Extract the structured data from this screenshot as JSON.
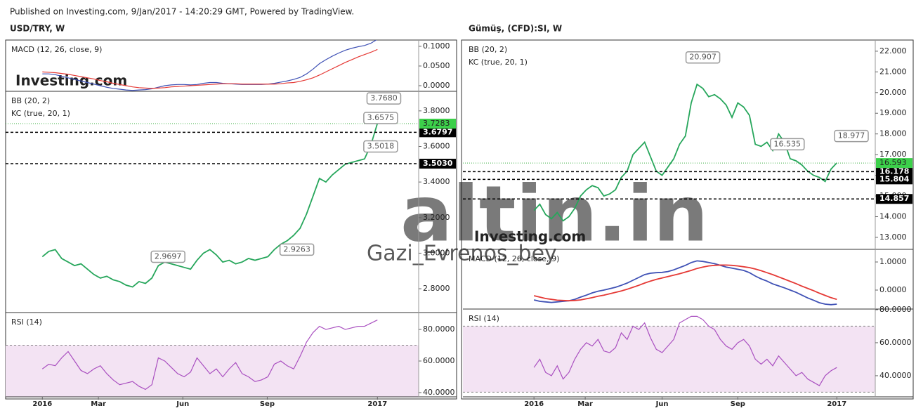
{
  "header": "Published on Investing.com, 9/Jan/2017 - 14:20:29 GMT, Powered by TradingView.",
  "left_title": "USD/TRY, W",
  "right_title": "Gümüş, (CFD):SI, W",
  "logos": [
    "Investing.com",
    "Investing.com"
  ],
  "watermark": [
    "altin.in",
    "Gazi_Evrenos_bey"
  ],
  "chart_data": [
    {
      "type": "line",
      "title": "MACD (12, 26, close, 9)",
      "xlim": [
        -5.7,
        58.4
      ],
      "ylim": [
        -0.0143,
        0.116
      ],
      "yticks": [
        {
          "value": 0,
          "label": "0.0000"
        },
        {
          "value": 0.05,
          "label": "0.0500"
        },
        {
          "value": 0.1,
          "label": "0.1000"
        }
      ],
      "series": [
        {
          "color": "#3f51b5",
          "values": [
            0.03,
            0.03,
            0.028,
            0.024,
            0.02,
            0.016,
            0.012,
            0.008,
            0.004,
            0.0,
            -0.004,
            -0.007,
            -0.009,
            -0.011,
            -0.012,
            -0.011,
            -0.01,
            -0.008,
            -0.004,
            0.0,
            0.002,
            0.003,
            0.003,
            0.002,
            0.003,
            0.006,
            0.008,
            0.008,
            0.006,
            0.005,
            0.004,
            0.003,
            0.003,
            0.003,
            0.003,
            0.004,
            0.006,
            0.009,
            0.012,
            0.016,
            0.021,
            0.03,
            0.042,
            0.056,
            0.066,
            0.075,
            0.083,
            0.09,
            0.095,
            0.099,
            0.102,
            0.108,
            0.118
          ]
        },
        {
          "color": "#e53935",
          "values": [
            0.035,
            0.034,
            0.033,
            0.031,
            0.029,
            0.026,
            0.023,
            0.02,
            0.017,
            0.013,
            0.01,
            0.006,
            0.003,
            0.0,
            -0.003,
            -0.005,
            -0.006,
            -0.007,
            -0.006,
            -0.005,
            -0.003,
            -0.002,
            -0.001,
            0.0,
            0.001,
            0.002,
            0.003,
            0.004,
            0.005,
            0.005,
            0.005,
            0.004,
            0.004,
            0.004,
            0.004,
            0.004,
            0.004,
            0.005,
            0.007,
            0.008,
            0.011,
            0.015,
            0.02,
            0.027,
            0.035,
            0.043,
            0.051,
            0.059,
            0.066,
            0.073,
            0.079,
            0.085,
            0.092
          ]
        }
      ]
    },
    {
      "type": "line",
      "title": "BB (20, 2)",
      "subtitle": "KC (true, 20, 1)",
      "xlim": [
        -5.7,
        58.4
      ],
      "ylim": [
        2.666,
        3.91
      ],
      "yticks": [
        {
          "value": 2.8,
          "label": "2.8000"
        },
        {
          "value": 3.0,
          "label": "3.0000"
        },
        {
          "value": 3.2,
          "label": "3.2000"
        },
        {
          "value": 3.4,
          "label": "3.4000"
        },
        {
          "value": 3.6,
          "label": "3.6000"
        },
        {
          "value": 3.8,
          "label": "3.8000"
        }
      ],
      "levels": [
        {
          "value": 3.6797,
          "label": "3.6797"
        },
        {
          "value": 3.503,
          "label": "3.5030"
        }
      ],
      "last_price": {
        "value": 3.7283,
        "label": "3.7283"
      },
      "annotations": [
        {
          "text": "3.7680",
          "x": 53,
          "y": 3.87
        },
        {
          "text": "3.6575",
          "x": 52.5,
          "y": 3.76
        },
        {
          "text": "3.5018",
          "x": 52.5,
          "y": 3.6
        },
        {
          "text": "2.9263",
          "x": 39.5,
          "y": 3.02
        },
        {
          "text": "2.9697",
          "x": 19.5,
          "y": 2.98
        }
      ],
      "series": [
        {
          "color": "#26a65b",
          "values": [
            2.98,
            3.01,
            3.02,
            2.97,
            2.95,
            2.93,
            2.94,
            2.91,
            2.88,
            2.86,
            2.87,
            2.85,
            2.84,
            2.82,
            2.81,
            2.84,
            2.83,
            2.86,
            2.93,
            2.95,
            2.94,
            2.93,
            2.92,
            2.91,
            2.96,
            3.0,
            3.02,
            2.99,
            2.95,
            2.96,
            2.94,
            2.95,
            2.97,
            2.96,
            2.97,
            2.98,
            3.02,
            3.05,
            3.07,
            3.1,
            3.14,
            3.22,
            3.32,
            3.42,
            3.4,
            3.44,
            3.47,
            3.5,
            3.51,
            3.52,
            3.53,
            3.61,
            3.73
          ]
        }
      ]
    },
    {
      "type": "line",
      "title": "RSI (14)",
      "xlim": [
        -5.7,
        58.4
      ],
      "ylim": [
        37.3,
        90.7
      ],
      "yticks": [
        {
          "value": 40,
          "label": "40.0000"
        },
        {
          "value": 60,
          "label": "60.0000"
        },
        {
          "value": 80,
          "label": "80.0000"
        }
      ],
      "bands": [
        30,
        70
      ],
      "xticks": [
        {
          "value": 0,
          "label": "2016"
        },
        {
          "value": 8.7,
          "label": "Mar"
        },
        {
          "value": 21.8,
          "label": "Jun"
        },
        {
          "value": 34.9,
          "label": "Sep"
        },
        {
          "value": 52,
          "label": "2017"
        }
      ],
      "series": [
        {
          "color": "#a94fc0",
          "values": [
            55,
            58,
            57,
            62,
            66,
            60,
            54,
            52,
            55,
            57,
            52,
            48,
            45,
            46,
            47,
            44,
            42,
            45,
            62,
            60,
            56,
            52,
            50,
            53,
            62,
            57,
            52,
            55,
            50,
            55,
            59,
            52,
            50,
            47,
            48,
            50,
            58,
            60,
            57,
            55,
            63,
            72,
            78,
            82,
            80,
            81,
            82,
            80,
            81,
            82,
            82,
            84,
            86
          ]
        }
      ]
    },
    {
      "type": "line",
      "title": "BB (20, 2)",
      "subtitle": "KC (true, 20, 1)",
      "xlim": [
        -12.2,
        58.6
      ],
      "ylim": [
        12.42,
        22.54
      ],
      "yticks": [
        {
          "value": 13,
          "label": "13.000"
        },
        {
          "value": 14,
          "label": "14.000"
        },
        {
          "value": 15,
          "label": "15.000"
        },
        {
          "value": 16,
          "label": "16.000"
        },
        {
          "value": 17,
          "label": "17.000"
        },
        {
          "value": 18,
          "label": "18.000"
        },
        {
          "value": 19,
          "label": "19.000"
        },
        {
          "value": 20,
          "label": "20.000"
        },
        {
          "value": 21,
          "label": "21.000"
        },
        {
          "value": 22,
          "label": "22.000"
        }
      ],
      "levels": [
        {
          "value": 16.178,
          "label": "16.178"
        },
        {
          "value": 15.804,
          "label": "15.804"
        },
        {
          "value": 14.857,
          "label": "14.857"
        }
      ],
      "last_price": {
        "value": 16.593,
        "label": "16.593"
      },
      "annotations": [
        {
          "text": "20.907",
          "x": 29,
          "y": 21.7
        },
        {
          "text": "16.535",
          "x": 43.5,
          "y": 17.5
        },
        {
          "text": "18.977",
          "x": 54.5,
          "y": 17.9
        }
      ],
      "series": [
        {
          "color": "#26a65b",
          "values": [
            14.3,
            14.6,
            14.1,
            13.9,
            14.2,
            13.8,
            14.0,
            14.4,
            15.0,
            15.3,
            15.5,
            15.4,
            15.0,
            15.1,
            15.3,
            15.9,
            16.2,
            17.0,
            17.3,
            17.6,
            16.9,
            16.2,
            16.0,
            16.4,
            16.8,
            17.5,
            17.9,
            19.5,
            20.4,
            20.2,
            19.8,
            19.9,
            19.7,
            19.4,
            18.8,
            19.5,
            19.3,
            18.9,
            17.5,
            17.4,
            17.6,
            17.2,
            18.0,
            17.6,
            16.8,
            16.7,
            16.5,
            16.2,
            16.0,
            15.9,
            15.7,
            16.3,
            16.6
          ]
        }
      ]
    },
    {
      "type": "line",
      "title": "MACD (12, 26, close, 9)",
      "xlim": [
        -12.2,
        58.6
      ],
      "ylim": [
        -0.675,
        1.45
      ],
      "yticks": [
        {
          "value": 0,
          "label": "0.0000"
        },
        {
          "value": 1,
          "label": "1.0000"
        }
      ],
      "series": [
        {
          "color": "#3f51b5",
          "values": [
            -0.35,
            -0.4,
            -0.42,
            -0.44,
            -0.42,
            -0.4,
            -0.38,
            -0.33,
            -0.25,
            -0.18,
            -0.1,
            -0.04,
            0.0,
            0.05,
            0.1,
            0.17,
            0.25,
            0.35,
            0.45,
            0.55,
            0.6,
            0.62,
            0.63,
            0.66,
            0.72,
            0.8,
            0.88,
            0.98,
            1.04,
            1.02,
            0.98,
            0.94,
            0.88,
            0.82,
            0.78,
            0.74,
            0.7,
            0.62,
            0.5,
            0.4,
            0.32,
            0.22,
            0.15,
            0.08,
            0.0,
            -0.08,
            -0.18,
            -0.28,
            -0.36,
            -0.45,
            -0.5,
            -0.52,
            -0.5
          ]
        },
        {
          "color": "#e53935",
          "values": [
            -0.2,
            -0.25,
            -0.3,
            -0.33,
            -0.36,
            -0.37,
            -0.38,
            -0.37,
            -0.35,
            -0.31,
            -0.27,
            -0.22,
            -0.18,
            -0.13,
            -0.08,
            -0.03,
            0.03,
            0.1,
            0.17,
            0.25,
            0.32,
            0.38,
            0.43,
            0.48,
            0.53,
            0.58,
            0.64,
            0.7,
            0.77,
            0.82,
            0.86,
            0.88,
            0.89,
            0.89,
            0.88,
            0.86,
            0.83,
            0.8,
            0.75,
            0.69,
            0.62,
            0.55,
            0.47,
            0.39,
            0.31,
            0.23,
            0.14,
            0.06,
            -0.02,
            -0.11,
            -0.19,
            -0.27,
            -0.33
          ]
        }
      ]
    },
    {
      "type": "line",
      "title": "RSI (14)",
      "xlim": [
        -12.2,
        58.6
      ],
      "ylim": [
        27.2,
        80.4
      ],
      "yticks": [
        {
          "value": 40,
          "label": "40.0000"
        },
        {
          "value": 60,
          "label": "60.0000"
        },
        {
          "value": 80,
          "label": "80.0000"
        }
      ],
      "bands": [
        30,
        70
      ],
      "xticks": [
        {
          "value": 0,
          "label": "2016"
        },
        {
          "value": 8.8,
          "label": "Mar"
        },
        {
          "value": 22,
          "label": "Jun"
        },
        {
          "value": 35,
          "label": "Sep"
        },
        {
          "value": 52,
          "label": "2017"
        }
      ],
      "series": [
        {
          "color": "#a94fc0",
          "values": [
            45,
            50,
            42,
            40,
            46,
            38,
            42,
            50,
            56,
            60,
            58,
            62,
            55,
            54,
            57,
            66,
            62,
            70,
            68,
            72,
            63,
            56,
            54,
            58,
            62,
            72,
            74,
            76,
            76,
            74,
            70,
            68,
            62,
            58,
            56,
            60,
            62,
            58,
            50,
            47,
            50,
            46,
            52,
            48,
            44,
            40,
            42,
            38,
            36,
            34,
            40,
            43,
            45
          ]
        }
      ]
    }
  ]
}
